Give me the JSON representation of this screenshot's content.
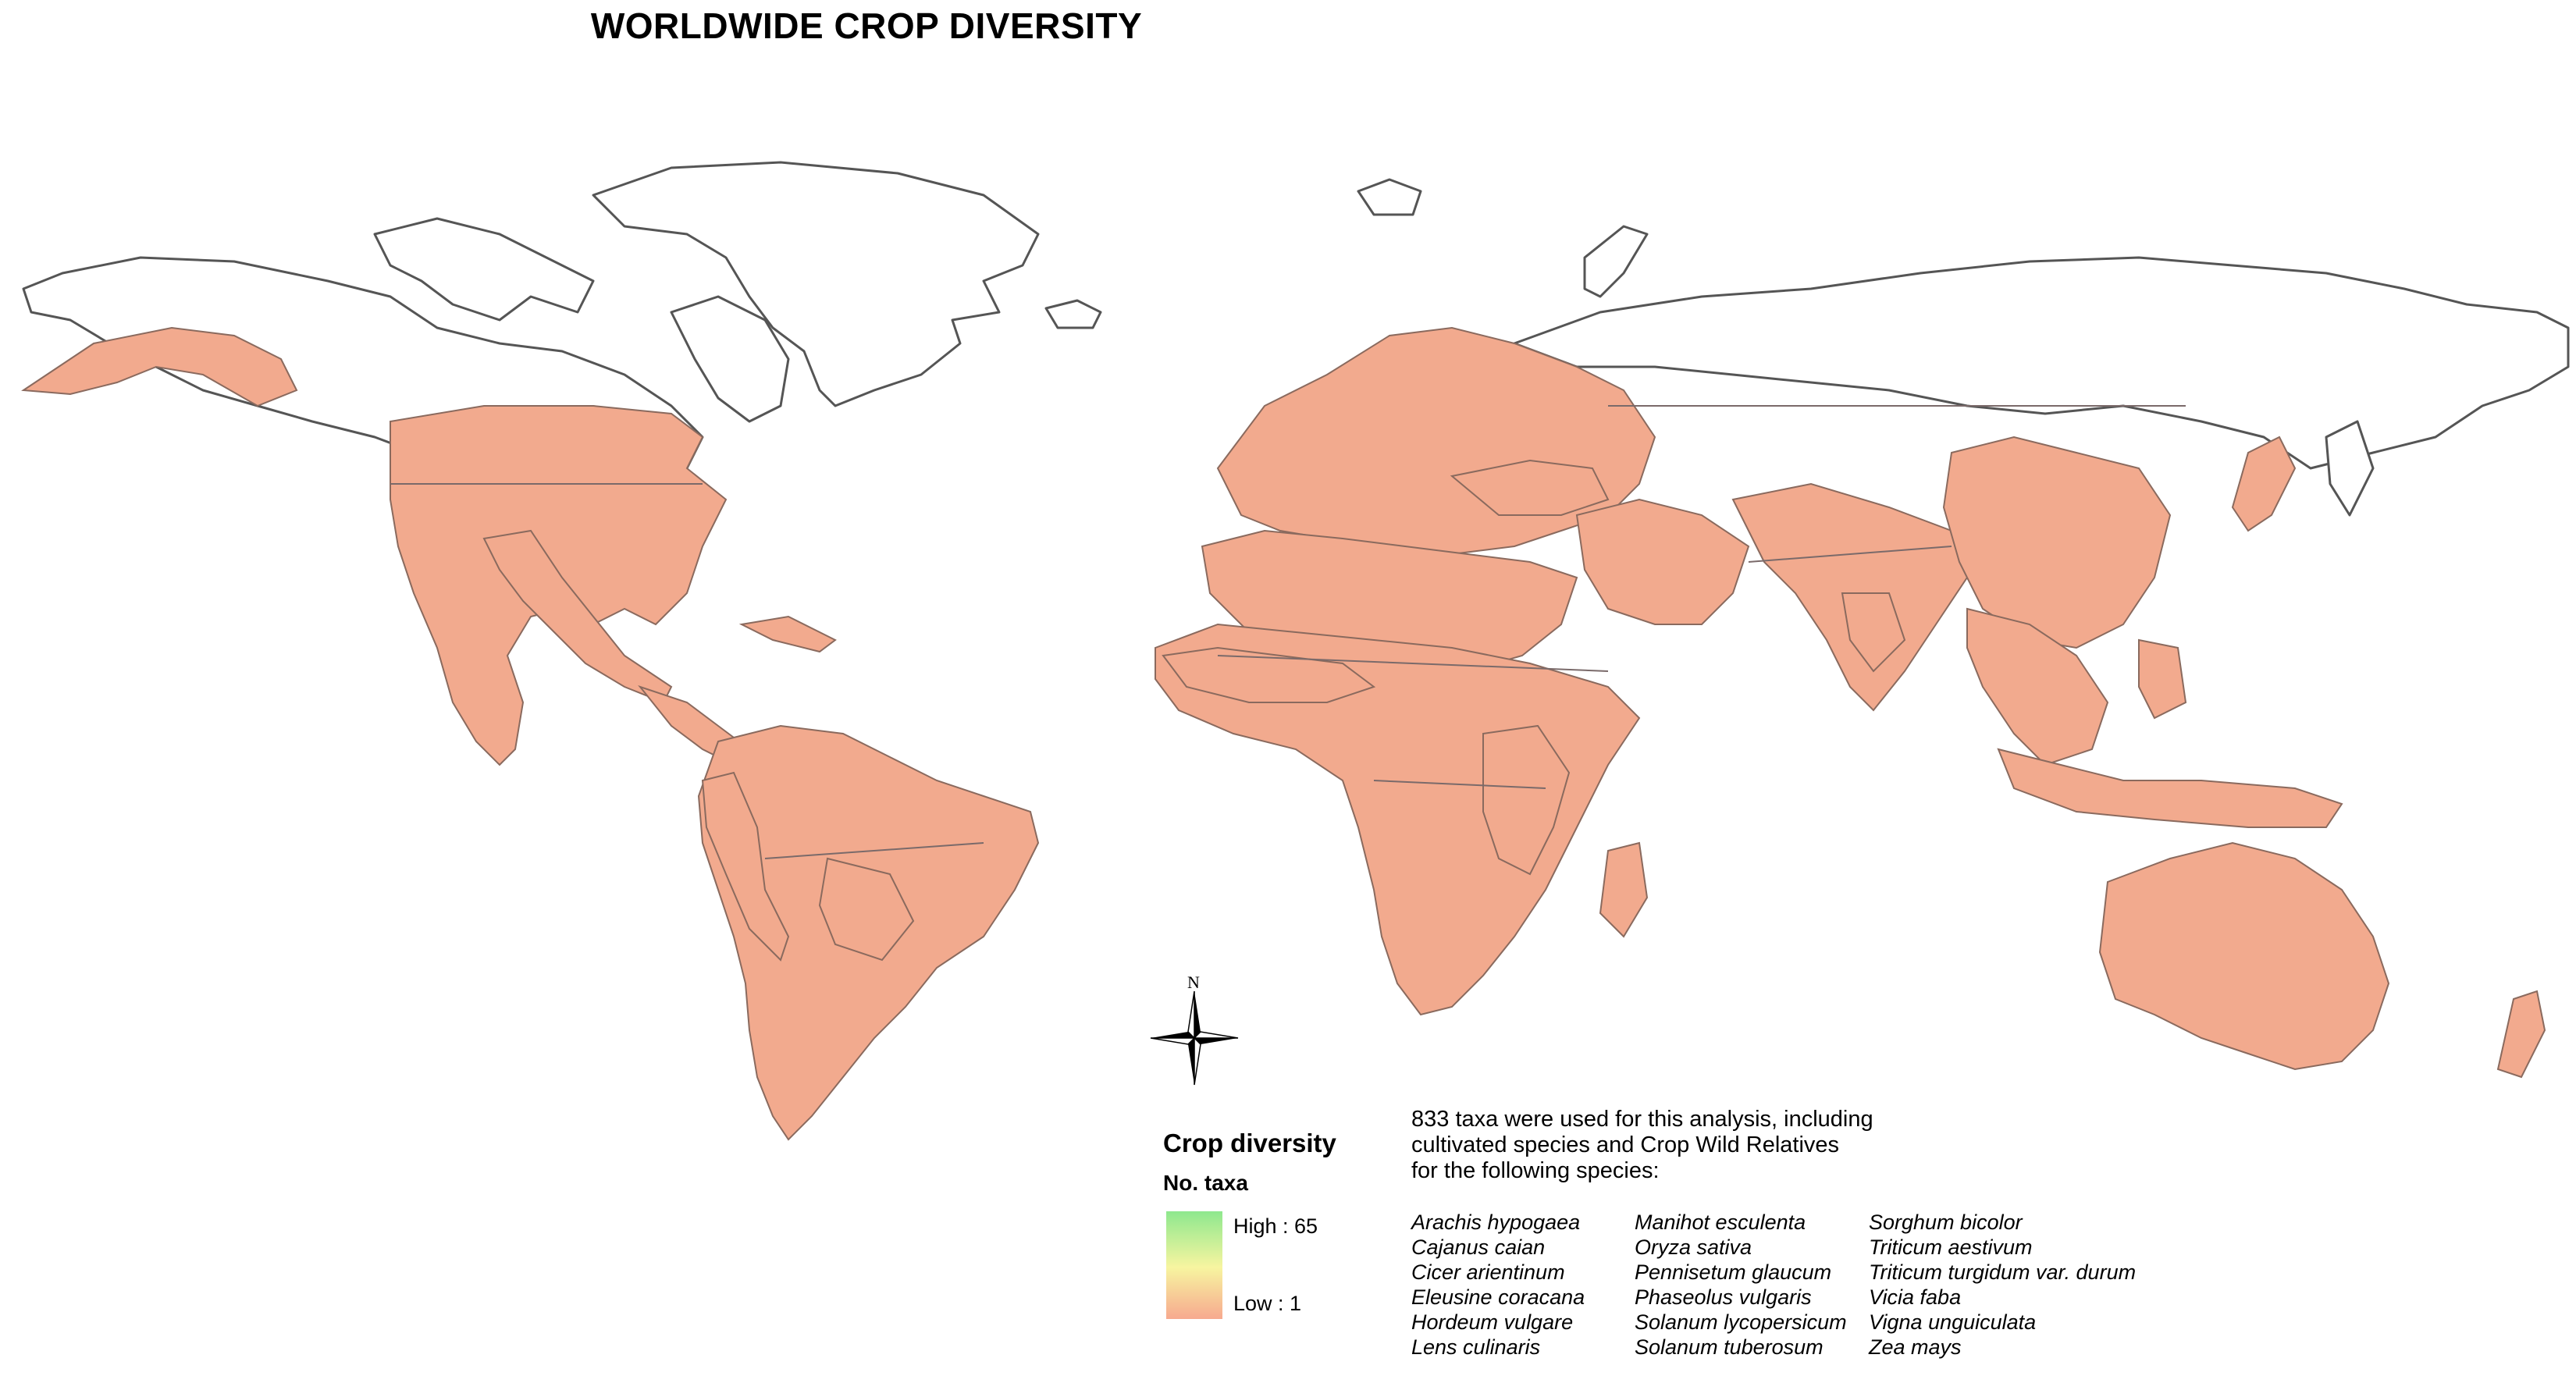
{
  "title": "WORLDWIDE CROP DIVERSITY",
  "colors": {
    "high": "#8ee88e",
    "mid": "#f7f5a0",
    "low": "#f7a98f",
    "coast": "#555555"
  },
  "legend": {
    "title": "Crop diversity",
    "subtitle": "No. taxa",
    "high_label": "High : 65",
    "low_label": "Low : 1"
  },
  "compass": {
    "label": "N"
  },
  "notes": {
    "line1": "833 taxa were used for this analysis, including",
    "line2": "cultivated species and Crop Wild Relatives",
    "line3": "for the following species:"
  },
  "species_columns": [
    [
      "Arachis hypogaea",
      "Cajanus caian",
      "Cicer arientinum",
      "Eleusine coracana",
      "Hordeum vulgare",
      "Lens culinaris"
    ],
    [
      "Manihot esculenta",
      "Oryza sativa",
      "Pennisetum glaucum",
      "Phaseolus vulgaris",
      "Solanum lycopersicum",
      "Solanum tuberosum"
    ],
    [
      "Sorghum bicolor",
      "Triticum aestivum",
      "Triticum turgidum var. durum",
      "Vicia faba",
      "Vigna unguiculata",
      "Zea mays"
    ]
  ]
}
